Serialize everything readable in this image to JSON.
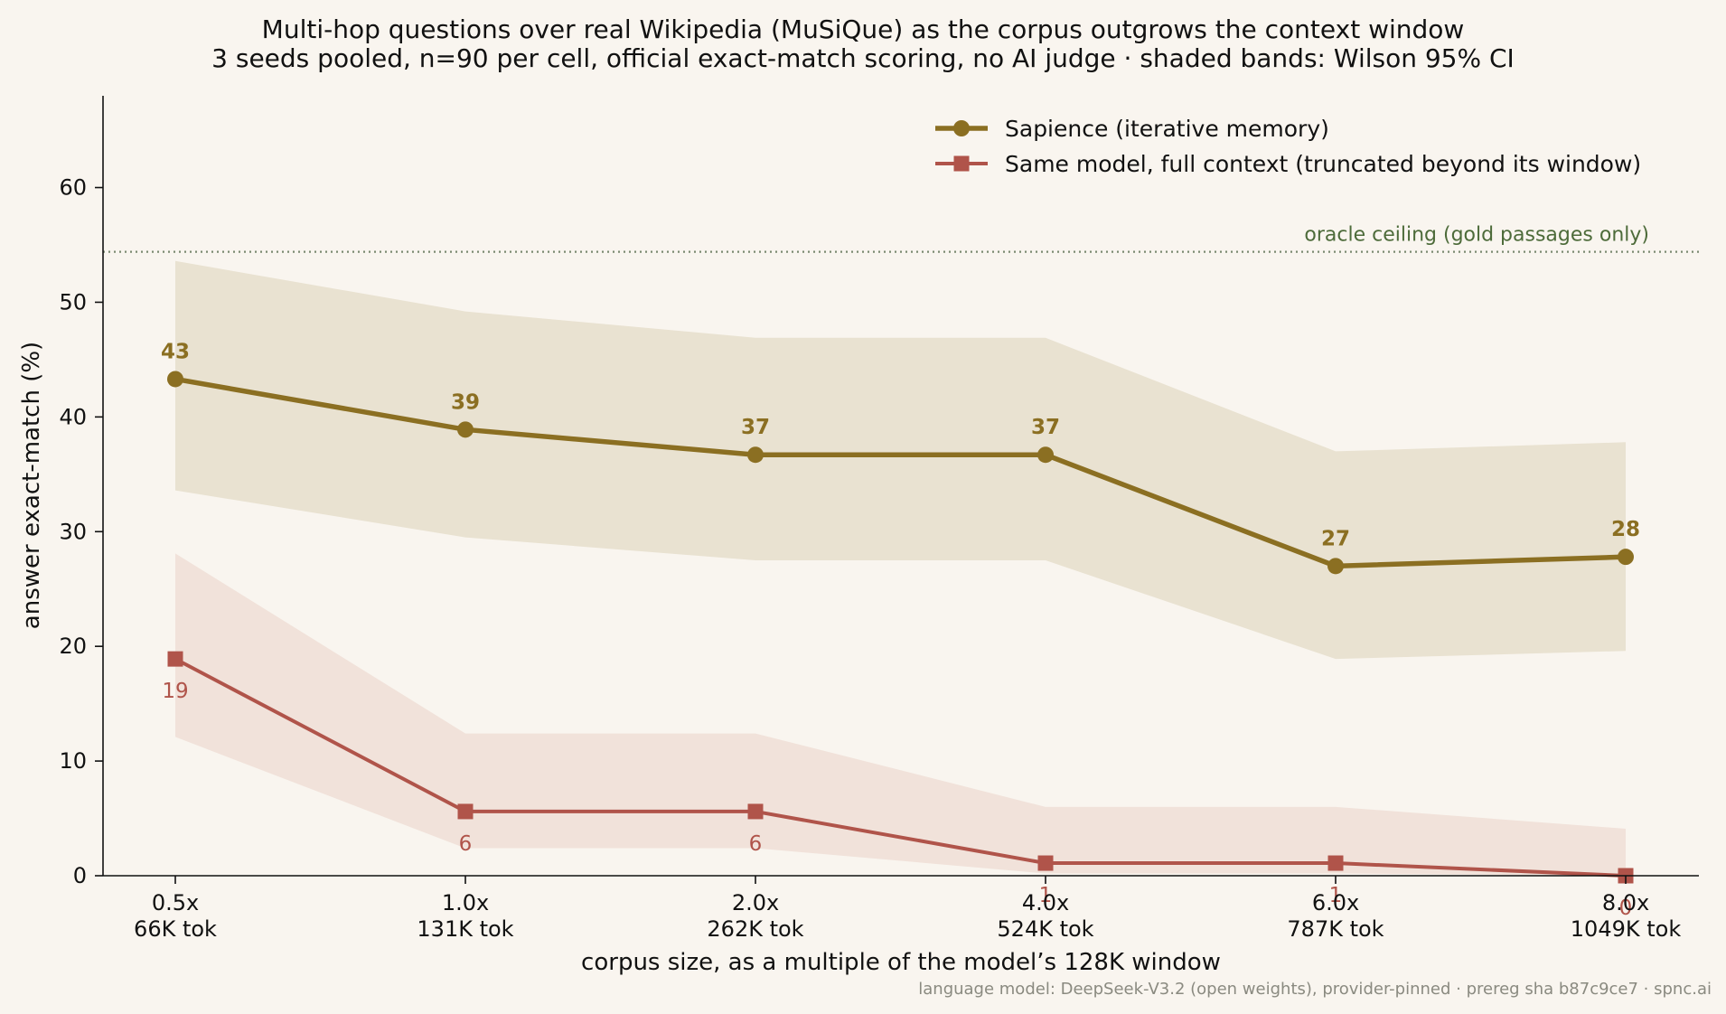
{
  "chart_data": {
    "type": "line",
    "title": "Multi-hop questions over real Wikipedia (MuSiQue) as the corpus outgrows the context window",
    "subtitle": "3 seeds pooled, n=90 per cell, official exact-match scoring, no AI judge · shaded bands: Wilson 95% CI",
    "xlabel": "corpus size, as a multiple of the model’s 128K window",
    "ylabel": "answer exact-match (%)",
    "categories": [
      "0.5x",
      "1.0x",
      "2.0x",
      "4.0x",
      "6.0x",
      "8.0x"
    ],
    "category_sublabels": [
      "66K tok",
      "131K tok",
      "262K tok",
      "524K tok",
      "787K tok",
      "1049K tok"
    ],
    "ylim": [
      0,
      68
    ],
    "yticks": [
      0,
      10,
      20,
      30,
      40,
      50,
      60
    ],
    "grid": false,
    "legend_position": "top-right",
    "series": [
      {
        "name": "Sapience (iterative memory)",
        "color": "#8b6f22",
        "band_color": "#e9e2d1",
        "marker": "circle",
        "values": [
          43.3,
          38.9,
          36.7,
          36.7,
          27.0,
          27.8
        ],
        "data_labels": [
          "43",
          "39",
          "37",
          "37",
          "27",
          "28"
        ],
        "ci_low": [
          33.6,
          29.5,
          27.5,
          27.5,
          18.9,
          19.6
        ],
        "ci_high": [
          53.6,
          49.2,
          46.9,
          46.9,
          37.0,
          37.8
        ]
      },
      {
        "name": "Same model, full context (truncated beyond its window)",
        "color": "#b0544a",
        "band_color": "#f1e2da",
        "marker": "square",
        "values": [
          18.9,
          5.6,
          5.6,
          1.1,
          1.1,
          0
        ],
        "data_labels": [
          "19",
          "6",
          "6",
          "1",
          "1",
          "0"
        ],
        "ci_low": [
          12.1,
          2.4,
          2.4,
          0.2,
          0.2,
          0
        ],
        "ci_high": [
          28.1,
          12.4,
          12.4,
          6.0,
          6.0,
          4.1
        ]
      }
    ],
    "reference_line": {
      "value": 54.4,
      "label": "oracle ceiling (gold passages only)",
      "color": "#7a8a70"
    },
    "footer": "language model: DeepSeek-V3.2 (open weights), provider-pinned · prereg sha b87c9ce7 · spnc.ai"
  }
}
